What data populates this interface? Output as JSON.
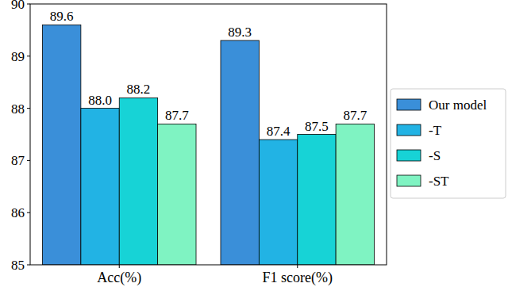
{
  "chart_data": {
    "type": "bar",
    "categories": [
      "Acc(%)",
      "F1 score(%)"
    ],
    "series": [
      {
        "name": "Our model",
        "color": "#3a8fd9",
        "values": [
          89.6,
          89.3
        ],
        "value_labels": [
          "89.6",
          "89.3"
        ]
      },
      {
        "name": "-T",
        "color": "#22b3e4",
        "values": [
          88.0,
          87.4
        ],
        "value_labels": [
          "88.0",
          "87.4"
        ]
      },
      {
        "name": "-S",
        "color": "#17d3d6",
        "values": [
          88.2,
          87.5
        ],
        "value_labels": [
          "88.2",
          "87.5"
        ]
      },
      {
        "name": "-ST",
        "color": "#7ff3c2",
        "values": [
          87.7,
          87.7
        ],
        "value_labels": [
          "87.7",
          "87.7"
        ]
      }
    ],
    "ylim": [
      85,
      90
    ],
    "yticks": [
      85,
      86,
      87,
      88,
      89,
      90
    ],
    "data_labels": true,
    "legend": "right",
    "grid": false
  }
}
